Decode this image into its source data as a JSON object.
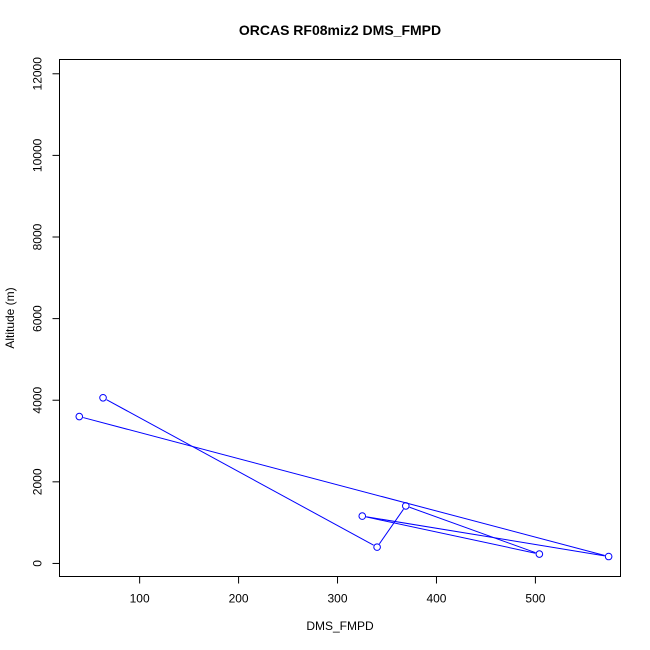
{
  "chart_data": {
    "type": "line",
    "title": "ORCAS RF08miz2 DMS_FMPD",
    "xlabel": "DMS_FMPD",
    "ylabel": "Altitude (m)",
    "xlim": [
      19,
      586
    ],
    "ylim": [
      -320,
      12350
    ],
    "x_ticks": [
      100,
      200,
      300,
      400,
      500
    ],
    "y_ticks": [
      0,
      2000,
      4000,
      6000,
      8000,
      10000,
      12000
    ],
    "grid": false,
    "series": [
      {
        "color": "#0000ff",
        "marker": "open-circle",
        "points": [
          {
            "x": 63,
            "y": 4060
          },
          {
            "x": 340,
            "y": 400
          },
          {
            "x": 369,
            "y": 1410
          },
          {
            "x": 504,
            "y": 230
          },
          {
            "x": 325,
            "y": 1160
          },
          {
            "x": 574,
            "y": 170
          },
          {
            "x": 39,
            "y": 3600
          }
        ]
      }
    ]
  }
}
